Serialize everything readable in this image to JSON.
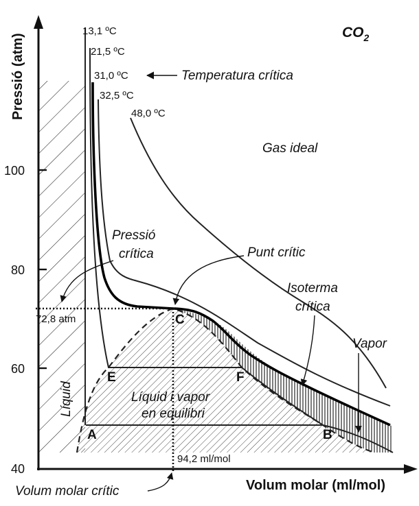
{
  "chart_data": {
    "type": "line",
    "title": "CO2",
    "xlabel": "Volum molar (ml/mol)",
    "ylabel": "Pressió (atm)",
    "y_ticks": [
      "100",
      "80",
      "60",
      "40"
    ],
    "isotherm_labels": [
      "13,1 ºC",
      "21,5 ºC",
      "31,0 ºC",
      "32,5 ºC",
      "48,0 ºC"
    ],
    "region_labels": {
      "gas_ideal": "Gas ideal",
      "liquid": "Líquid",
      "liquid_vapor_1": "Líquid i vapor",
      "liquid_vapor_2": "en equilibri",
      "vapor": "Vapor"
    },
    "annotations": {
      "temperatura_critica": "Temperatura crítica",
      "pressio_critica_1": "Pressió",
      "pressio_critica_2": "crítica",
      "punt_critic": "Punt crític",
      "isoterma_critica_1": "Isoterma",
      "isoterma_critica_2": "crítica",
      "volum_molar_critic": "Volum molar crític",
      "critical_pressure_value": "72,8 atm",
      "critical_volume_value": "94,2 ml/mol"
    },
    "points": {
      "A": "A",
      "B": "B",
      "C": "C",
      "E": "E",
      "F": "F"
    },
    "critical_pressure_atm": 72.8,
    "ylim": [
      40,
      110
    ]
  }
}
